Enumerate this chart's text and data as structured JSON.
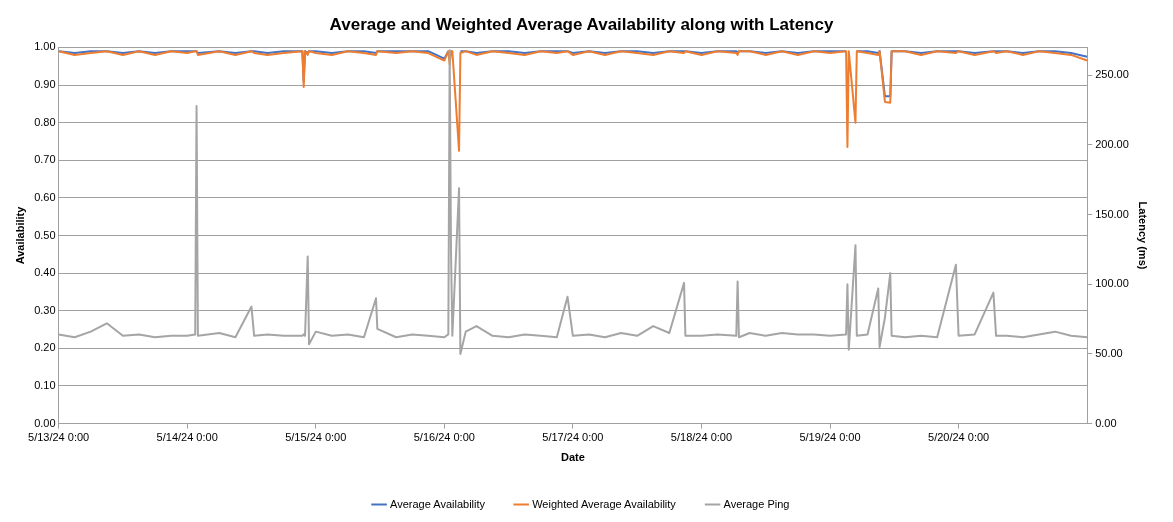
{
  "chart_data": {
    "type": "line",
    "title": "Average and Weighted Average Availability along with Latency",
    "xlabel": "Date",
    "ylabel": "Availability",
    "y2label": "Latency (ms)",
    "x": [
      "--05-13T00:00",
      "--05-13T03:00",
      "--05-13T06:00",
      "--05-13T09:00",
      "--05-13T12:00",
      "--05-13T15:00",
      "--05-13T18:00",
      "--05-13T21:00",
      "--05-14T00:00",
      "--05-14T01:30",
      "--05-14T01:45",
      "--05-14T02:00",
      "--05-14T06:00",
      "--05-14T09:00",
      "--05-14T12:00",
      "--05-14T12:30",
      "--05-14T15:00",
      "--05-14T18:00",
      "--05-14T21:30",
      "--05-14T21:45",
      "--05-14T22:00",
      "--05-14T22:30",
      "--05-14T22:45",
      "--05-15T00:00",
      "--05-15T03:00",
      "--05-15T06:00",
      "--05-15T09:00",
      "--05-15T11:15",
      "--05-15T11:30",
      "--05-15T15:00",
      "--05-15T18:00",
      "--05-15T21:00",
      "--05-16T00:00",
      "--05-16T00:45",
      "--05-16T01:00",
      "--05-16T01:15",
      "--05-16T01:30",
      "--05-16T02:45",
      "--05-16T03:00",
      "--05-16T04:00",
      "--05-16T06:00",
      "--05-16T09:00",
      "--05-16T12:00",
      "--05-16T15:00",
      "--05-16T18:00",
      "--05-16T21:00",
      "--05-16T23:00",
      "--05-17T00:00",
      "--05-17T03:00",
      "--05-17T06:00",
      "--05-17T09:00",
      "--05-17T12:00",
      "--05-17T15:00",
      "--05-17T18:00",
      "--05-17T20:45",
      "--05-17T21:00",
      "--05-18T00:00",
      "--05-18T03:00",
      "--05-18T06:30",
      "--05-18T06:45",
      "--05-18T07:00",
      "--05-18T09:00",
      "--05-18T12:00",
      "--05-18T15:00",
      "--05-18T18:00",
      "--05-18T21:00",
      "--05-19T00:00",
      "--05-19T03:00",
      "--05-19T03:15",
      "--05-19T03:30",
      "--05-19T04:45",
      "--05-19T05:00",
      "--05-19T07:00",
      "--05-19T09:00",
      "--05-19T09:15",
      "--05-19T10:15",
      "--05-19T11:15",
      "--05-19T11:30",
      "--05-19T14:00",
      "--05-19T17:00",
      "--05-19T20:00",
      "--05-19T23:30",
      "--05-20T00:00",
      "--05-20T03:00",
      "--05-20T06:30",
      "--05-20T07:00",
      "--05-20T09:00",
      "--05-20T12:00",
      "--05-20T15:00",
      "--05-20T18:00",
      "--05-20T21:00",
      "--05-21T00:00"
    ],
    "series": [
      {
        "name": "Average Availability",
        "color": "#4472c4",
        "values": [
          0.99,
          0.985,
          0.99,
          0.99,
          0.985,
          0.99,
          0.985,
          0.99,
          0.99,
          0.99,
          0.99,
          0.985,
          0.99,
          0.985,
          0.99,
          0.99,
          0.985,
          0.99,
          0.99,
          0.91,
          0.99,
          0.985,
          0.99,
          0.99,
          0.985,
          0.99,
          0.99,
          0.985,
          0.99,
          0.99,
          0.99,
          0.99,
          0.97,
          0.99,
          null,
          0.99,
          0.99,
          null,
          0.99,
          0.99,
          0.985,
          0.99,
          0.99,
          0.985,
          0.99,
          0.99,
          0.99,
          0.985,
          0.99,
          0.985,
          0.99,
          0.99,
          0.985,
          0.99,
          0.99,
          0.99,
          0.985,
          0.99,
          0.99,
          0.985,
          0.99,
          0.99,
          0.985,
          0.99,
          0.985,
          0.99,
          0.99,
          0.99,
          null,
          0.99,
          null,
          0.99,
          0.99,
          0.985,
          0.99,
          0.87,
          0.87,
          0.99,
          0.99,
          0.985,
          0.99,
          0.99,
          0.99,
          0.985,
          0.99,
          0.99,
          0.99,
          0.985,
          0.99,
          0.99,
          0.985,
          0.975
        ]
      },
      {
        "name": "Weighted Average Availability",
        "color": "#ed7d31",
        "values": [
          0.99,
          0.98,
          0.985,
          0.99,
          0.98,
          0.99,
          0.98,
          0.99,
          0.985,
          0.99,
          0.99,
          0.98,
          0.99,
          0.98,
          0.99,
          0.985,
          0.98,
          0.985,
          0.99,
          0.895,
          0.99,
          0.98,
          0.99,
          0.985,
          0.98,
          0.99,
          0.985,
          0.98,
          0.99,
          0.985,
          0.99,
          0.985,
          0.965,
          0.99,
          0.955,
          0.99,
          0.99,
          0.725,
          0.985,
          0.99,
          0.98,
          0.99,
          0.985,
          0.98,
          0.99,
          0.985,
          0.99,
          0.98,
          0.99,
          0.98,
          0.99,
          0.985,
          0.98,
          0.99,
          0.985,
          0.99,
          0.98,
          0.99,
          0.985,
          0.98,
          0.99,
          0.99,
          0.98,
          0.99,
          0.98,
          0.99,
          0.985,
          0.99,
          0.735,
          0.99,
          0.8,
          0.99,
          0.985,
          0.98,
          0.99,
          0.855,
          0.853,
          0.99,
          0.99,
          0.98,
          0.99,
          0.985,
          0.99,
          0.98,
          0.99,
          0.985,
          0.99,
          0.98,
          0.99,
          0.985,
          0.98,
          0.965
        ]
      },
      {
        "name": "Average Ping",
        "color": "#a5a5a5",
        "axis": "y2",
        "values": [
          64,
          62,
          66,
          72,
          63,
          64,
          62,
          63,
          63,
          64,
          228,
          63,
          65,
          62,
          84,
          63,
          64,
          63,
          63,
          64,
          63,
          120,
          57,
          66,
          63,
          64,
          62,
          90,
          68,
          62,
          64,
          63,
          62,
          64,
          268,
          124,
          63,
          169,
          50,
          66,
          70,
          63,
          62,
          64,
          63,
          62,
          91,
          63,
          64,
          62,
          65,
          63,
          70,
          65,
          101,
          63,
          63,
          64,
          63,
          102,
          62,
          65,
          63,
          65,
          64,
          64,
          63,
          64,
          100,
          53,
          128,
          63,
          64,
          97,
          55,
          76,
          108,
          63,
          62,
          63,
          62,
          114,
          63,
          64,
          94,
          63,
          63,
          62,
          64,
          66,
          63,
          62
        ]
      }
    ],
    "xlim": [
      "--05-13T00:00",
      "--05-21T00:00"
    ],
    "xticks": [
      {
        "value": "--05-13T00:00",
        "label": "5/13/24 0:00"
      },
      {
        "value": "--05-14T00:00",
        "label": "5/14/24 0:00"
      },
      {
        "value": "--05-15T00:00",
        "label": "5/15/24 0:00"
      },
      {
        "value": "--05-16T00:00",
        "label": "5/16/24 0:00"
      },
      {
        "value": "--05-17T00:00",
        "label": "5/17/24 0:00"
      },
      {
        "value": "--05-18T00:00",
        "label": "5/18/24 0:00"
      },
      {
        "value": "--05-19T00:00",
        "label": "5/19/24 0:00"
      },
      {
        "value": "--05-20T00:00",
        "label": "5/20/24 0:00"
      }
    ],
    "ylim": [
      0,
      1
    ],
    "yticks": [
      {
        "value": 0,
        "label": "0.00"
      },
      {
        "value": 0.1,
        "label": "0.10"
      },
      {
        "value": 0.2,
        "label": "0.20"
      },
      {
        "value": 0.3,
        "label": "0.30"
      },
      {
        "value": 0.4,
        "label": "0.40"
      },
      {
        "value": 0.5,
        "label": "0.50"
      },
      {
        "value": 0.6,
        "label": "0.60"
      },
      {
        "value": 0.7,
        "label": "0.70"
      },
      {
        "value": 0.8,
        "label": "0.80"
      },
      {
        "value": 0.9,
        "label": "0.90"
      },
      {
        "value": 1,
        "label": "1.00"
      }
    ],
    "y2lim": [
      0,
      270
    ],
    "y2ticks": [
      {
        "value": 0,
        "label": "0.00"
      },
      {
        "value": 50,
        "label": "50.00"
      },
      {
        "value": 100,
        "label": "100.00"
      },
      {
        "value": 150,
        "label": "150.00"
      },
      {
        "value": 200,
        "label": "200.00"
      },
      {
        "value": 250,
        "label": "250.00"
      }
    ],
    "grid": "y",
    "legend": "bottom",
    "marker": "none",
    "line_style": "solid"
  }
}
